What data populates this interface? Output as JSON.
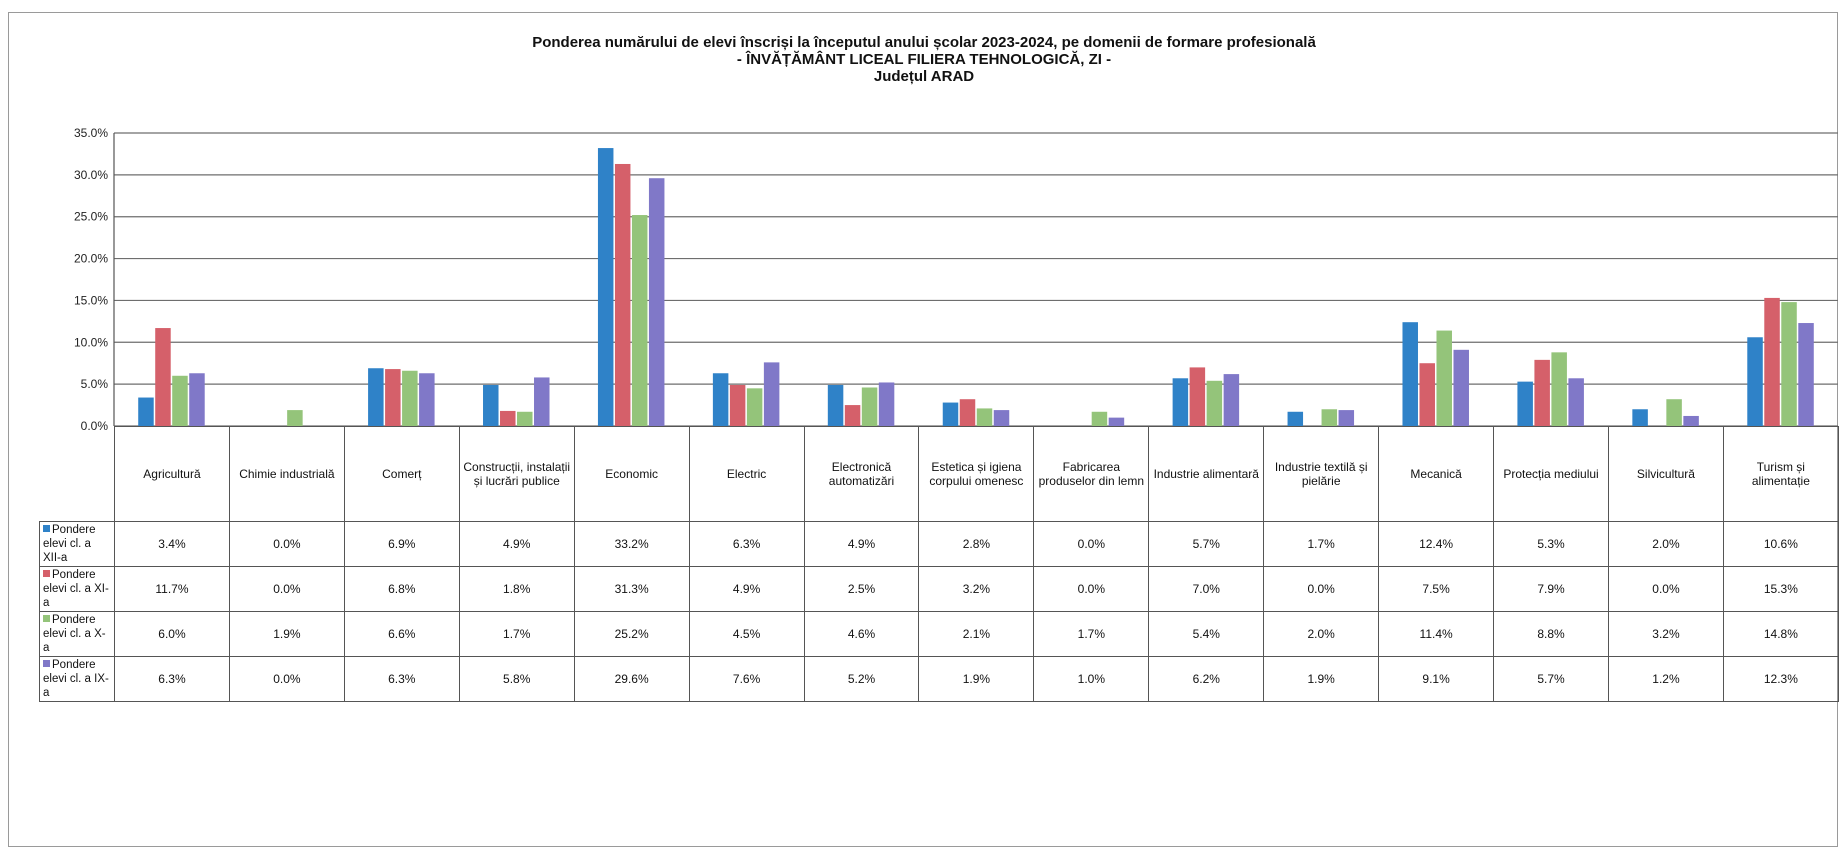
{
  "chart_data": {
    "type": "bar",
    "title": "Ponderea numărului de elevi înscriși la începutul anului școlar 2023-2024, pe domenii de formare profesională",
    "subtitle": "- ÎNVĂȚĂMÂNT LICEAL FILIERA TEHNOLOGICĂ, ZI -",
    "subtitle2": "Județul ARAD",
    "ylim": [
      0,
      35
    ],
    "yticks": [
      "0.0%",
      "5.0%",
      "10.0%",
      "15.0%",
      "20.0%",
      "25.0%",
      "30.0%",
      "35.0%"
    ],
    "grid": true,
    "legend": "data-table",
    "categories": [
      "Agricultură",
      "Chimie industrială",
      "Comerț",
      "Construcții, instalații și lucrări publice",
      "Economic",
      "Electric",
      "Electronică automatizări",
      "Estetica și igiena corpului omenesc",
      "Fabricarea produselor din lemn",
      "Industrie alimentară",
      "Industrie textilă și pielărie",
      "Mecanică",
      "Protecția mediului",
      "Silvicultură",
      "Turism și alimentație"
    ],
    "series": [
      {
        "name": "Pondere elevi cl. a XII-a",
        "color": "#2f82c8",
        "values": [
          3.4,
          0.0,
          6.9,
          4.9,
          33.2,
          6.3,
          4.9,
          2.8,
          0.0,
          5.7,
          1.7,
          12.4,
          5.3,
          2.0,
          10.6
        ],
        "labels": [
          "3.4%",
          "0.0%",
          "6.9%",
          "4.9%",
          "33.2%",
          "6.3%",
          "4.9%",
          "2.8%",
          "0.0%",
          "5.7%",
          "1.7%",
          "12.4%",
          "5.3%",
          "2.0%",
          "10.6%"
        ]
      },
      {
        "name": "Pondere elevi cl. a XI-a",
        "color": "#d5606a",
        "values": [
          11.7,
          0.0,
          6.8,
          1.8,
          31.3,
          4.9,
          2.5,
          3.2,
          0.0,
          7.0,
          0.0,
          7.5,
          7.9,
          0.0,
          15.3
        ],
        "labels": [
          "11.7%",
          "0.0%",
          "6.8%",
          "1.8%",
          "31.3%",
          "4.9%",
          "2.5%",
          "3.2%",
          "0.0%",
          "7.0%",
          "0.0%",
          "7.5%",
          "7.9%",
          "0.0%",
          "15.3%"
        ]
      },
      {
        "name": "Pondere elevi cl. a X-a",
        "color": "#94c47a",
        "values": [
          6.0,
          1.9,
          6.6,
          1.7,
          25.2,
          4.5,
          4.6,
          2.1,
          1.7,
          5.4,
          2.0,
          11.4,
          8.8,
          3.2,
          14.8
        ],
        "labels": [
          "6.0%",
          "1.9%",
          "6.6%",
          "1.7%",
          "25.2%",
          "4.5%",
          "4.6%",
          "2.1%",
          "1.7%",
          "5.4%",
          "2.0%",
          "11.4%",
          "8.8%",
          "3.2%",
          "14.8%"
        ]
      },
      {
        "name": "Pondere elevi cl. a IX-a",
        "color": "#8078c8",
        "values": [
          6.3,
          0.0,
          6.3,
          5.8,
          29.6,
          7.6,
          5.2,
          1.9,
          1.0,
          6.2,
          1.9,
          9.1,
          5.7,
          1.2,
          12.3
        ],
        "labels": [
          "6.3%",
          "0.0%",
          "6.3%",
          "5.8%",
          "29.6%",
          "7.6%",
          "5.2%",
          "1.9%",
          "1.0%",
          "6.2%",
          "1.9%",
          "9.1%",
          "5.7%",
          "1.2%",
          "12.3%"
        ]
      }
    ]
  }
}
